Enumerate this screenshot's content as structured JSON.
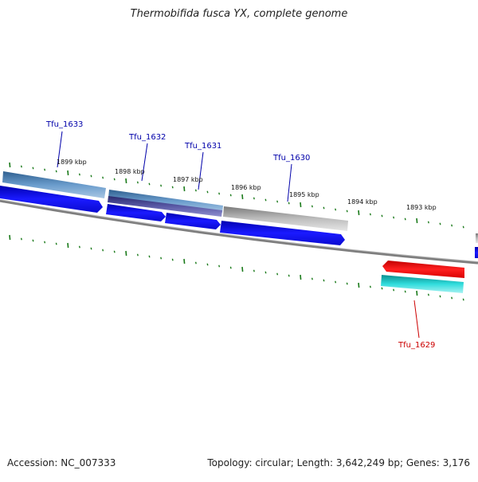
{
  "title": "Thermobifida fusca YX, complete genome",
  "footer": {
    "accession": "Accession: NC_007333",
    "summary": "Topology: circular; Length: 3,642,249 bp; Genes: 3,176"
  },
  "scale_labels": [
    "1899 kbp",
    "1898 kbp",
    "1897 kbp",
    "1896 kbp",
    "1895 kbp",
    "1894 kbp",
    "1893 kbp"
  ],
  "gene_labels": {
    "tfu1633": "Tfu_1633",
    "tfu1632": "Tfu_1632",
    "tfu1631": "Tfu_1631",
    "tfu1630": "Tfu_1630",
    "tfu1629": "Tfu_1629"
  },
  "colors": {
    "forward_label": "#0000aa",
    "reverse_label": "#cc0000",
    "tick": "#1a7a1a",
    "cds_forward": "#1010e0",
    "cds_reverse": "#e01010",
    "backbone": "#808080"
  }
}
